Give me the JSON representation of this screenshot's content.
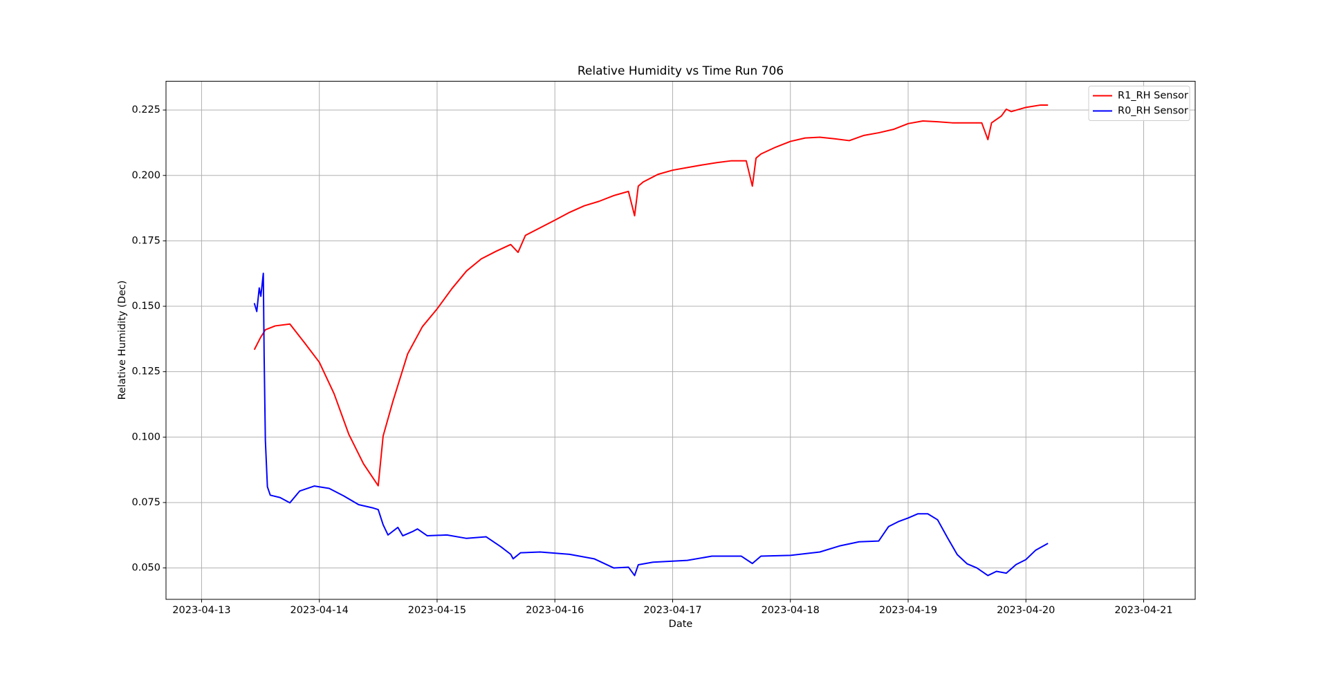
{
  "chart_data": {
    "type": "line",
    "title": "Relative Humidity vs Time Run 706",
    "x_label": "Date",
    "y_label": "Relative Humidity (Dec)",
    "xlim": [
      "2023-04-12T16:45",
      "2023-04-21T10:30"
    ],
    "xticks": [
      "2023-04-13",
      "2023-04-14",
      "2023-04-15",
      "2023-04-16",
      "2023-04-17",
      "2023-04-18",
      "2023-04-19",
      "2023-04-20",
      "2023-04-21"
    ],
    "ylim": [
      0.038,
      0.236
    ],
    "yticks": [
      {
        "value": 0.05,
        "label": "0.050"
      },
      0.075,
      {
        "value": 0.1,
        "label": "0.100"
      },
      0.125,
      {
        "value": 0.15,
        "label": "0.150"
      },
      0.175,
      {
        "value": 0.2,
        "label": "0.200"
      },
      0.225
    ],
    "grid": true,
    "legend": "upper right",
    "series": [
      {
        "name": "R1_RH Sensor",
        "color": "#ff0000",
        "x": [
          "2023-04-13T10:45",
          "2023-04-13T12:00",
          "2023-04-13T13:00",
          "2023-04-13T15:00",
          "2023-04-13T18:00",
          "2023-04-13T21:00",
          "2023-04-14T00:00",
          "2023-04-14T03:00",
          "2023-04-14T06:00",
          "2023-04-14T09:00",
          "2023-04-14T12:00",
          "2023-04-14T13:00",
          "2023-04-14T15:00",
          "2023-04-14T18:00",
          "2023-04-14T21:00",
          "2023-04-15T00:00",
          "2023-04-15T03:00",
          "2023-04-15T06:00",
          "2023-04-15T09:00",
          "2023-04-15T12:00",
          "2023-04-15T15:00",
          "2023-04-15T16:30",
          "2023-04-15T18:00",
          "2023-04-15T21:00",
          "2023-04-16T00:00",
          "2023-04-16T03:00",
          "2023-04-16T06:00",
          "2023-04-16T09:00",
          "2023-04-16T12:00",
          "2023-04-16T15:00",
          "2023-04-16T16:15",
          "2023-04-16T17:00",
          "2023-04-16T18:00",
          "2023-04-16T21:00",
          "2023-04-17T00:00",
          "2023-04-17T03:00",
          "2023-04-17T06:00",
          "2023-04-17T09:00",
          "2023-04-17T12:00",
          "2023-04-17T15:00",
          "2023-04-17T16:15",
          "2023-04-17T17:00",
          "2023-04-17T18:00",
          "2023-04-17T21:00",
          "2023-04-18T00:00",
          "2023-04-18T03:00",
          "2023-04-18T06:00",
          "2023-04-18T09:00",
          "2023-04-18T12:00",
          "2023-04-18T15:00",
          "2023-04-18T18:00",
          "2023-04-18T21:00",
          "2023-04-19T00:00",
          "2023-04-19T03:00",
          "2023-04-19T06:00",
          "2023-04-19T09:00",
          "2023-04-19T12:00",
          "2023-04-19T15:00",
          "2023-04-19T16:15",
          "2023-04-19T17:00",
          "2023-04-19T19:00",
          "2023-04-19T20:00",
          "2023-04-19T21:00",
          "2023-04-20T00:00",
          "2023-04-20T03:00",
          "2023-04-20T04:30"
        ],
        "values": [
          0.1334,
          0.138,
          0.141,
          0.1425,
          0.1432,
          0.136,
          0.1286,
          0.1166,
          0.1011,
          0.0898,
          0.0814,
          0.1004,
          0.1137,
          0.1318,
          0.1422,
          0.149,
          0.1567,
          0.1635,
          0.1681,
          0.171,
          0.1736,
          0.1706,
          0.1771,
          0.18,
          0.1829,
          0.1859,
          0.1884,
          0.1901,
          0.1923,
          0.1939,
          0.1846,
          0.1959,
          0.1975,
          0.2004,
          0.202,
          0.203,
          0.204,
          0.2049,
          0.2056,
          0.2056,
          0.1959,
          0.2066,
          0.2082,
          0.2108,
          0.213,
          0.2143,
          0.2146,
          0.214,
          0.2133,
          0.2153,
          0.2163,
          0.2176,
          0.2198,
          0.2208,
          0.2205,
          0.2201,
          0.2201,
          0.2201,
          0.2137,
          0.2201,
          0.2227,
          0.2253,
          0.2244,
          0.226,
          0.2269,
          0.2269
        ]
      },
      {
        "name": "R0_RH Sensor",
        "color": "#0000ff",
        "x": [
          "2023-04-13T10:45",
          "2023-04-13T11:15",
          "2023-04-13T11:45",
          "2023-04-13T12:05",
          "2023-04-13T12:35",
          "2023-04-13T12:45",
          "2023-04-13T13:00",
          "2023-04-13T13:25",
          "2023-04-13T14:00",
          "2023-04-13T16:00",
          "2023-04-13T18:00",
          "2023-04-13T20:00",
          "2023-04-13T23:00",
          "2023-04-14T02:00",
          "2023-04-14T05:00",
          "2023-04-14T08:00",
          "2023-04-14T11:00",
          "2023-04-14T12:00",
          "2023-04-14T13:00",
          "2023-04-14T14:00",
          "2023-04-14T16:00",
          "2023-04-14T17:00",
          "2023-04-14T19:00",
          "2023-04-14T20:00",
          "2023-04-14T22:00",
          "2023-04-15T02:00",
          "2023-04-15T06:00",
          "2023-04-15T10:00",
          "2023-04-15T13:00",
          "2023-04-15T15:00",
          "2023-04-15T15:30",
          "2023-04-15T17:00",
          "2023-04-15T21:00",
          "2023-04-16T03:00",
          "2023-04-16T08:00",
          "2023-04-16T12:00",
          "2023-04-16T15:00",
          "2023-04-16T16:15",
          "2023-04-16T17:00",
          "2023-04-16T20:00",
          "2023-04-17T03:00",
          "2023-04-17T08:00",
          "2023-04-17T14:00",
          "2023-04-17T16:15",
          "2023-04-17T18:00",
          "2023-04-18T00:00",
          "2023-04-18T06:00",
          "2023-04-18T10:00",
          "2023-04-18T14:00",
          "2023-04-18T18:00",
          "2023-04-18T20:00",
          "2023-04-18T22:00",
          "2023-04-19T00:00",
          "2023-04-19T02:00",
          "2023-04-19T04:00",
          "2023-04-19T06:00",
          "2023-04-19T08:00",
          "2023-04-19T10:00",
          "2023-04-19T12:00",
          "2023-04-19T14:00",
          "2023-04-19T16:15",
          "2023-04-19T18:00",
          "2023-04-19T20:00",
          "2023-04-19T22:00",
          "2023-04-20T00:00",
          "2023-04-20T02:00",
          "2023-04-20T04:30"
        ],
        "values": [
          0.1512,
          0.148,
          0.157,
          0.1538,
          0.1626,
          0.1312,
          0.0988,
          0.081,
          0.0778,
          0.0769,
          0.0749,
          0.0794,
          0.0813,
          0.0804,
          0.0775,
          0.0742,
          0.0729,
          0.0723,
          0.0665,
          0.0626,
          0.0655,
          0.0623,
          0.0639,
          0.0649,
          0.0623,
          0.0626,
          0.0613,
          0.0619,
          0.0581,
          0.0552,
          0.0535,
          0.0558,
          0.0561,
          0.0552,
          0.0535,
          0.05,
          0.0503,
          0.0471,
          0.0512,
          0.0522,
          0.0529,
          0.0545,
          0.0545,
          0.0517,
          0.0545,
          0.0548,
          0.0561,
          0.0584,
          0.06,
          0.0603,
          0.0658,
          0.0677,
          0.0691,
          0.0707,
          0.0707,
          0.0684,
          0.0616,
          0.0551,
          0.0516,
          0.05,
          0.0471,
          0.0487,
          0.048,
          0.0513,
          0.0532,
          0.0568,
          0.0594
        ]
      }
    ]
  }
}
